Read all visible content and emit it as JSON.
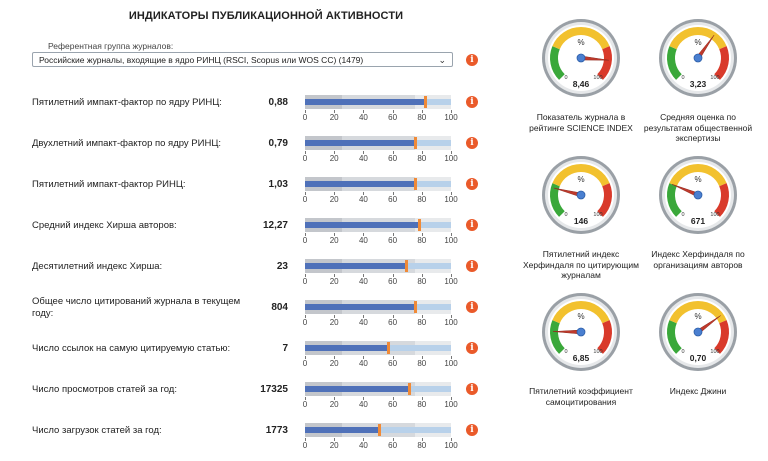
{
  "title": "ИНДИКАТОРЫ ПУБЛИКАЦИОННОЙ АКТИВНОСТИ",
  "reference": {
    "label": "Референтная группа журналов:",
    "selected": "Российские журналы, входящие в ядро РИНЦ (RSCI, Scopus или WOS CC) (1479)"
  },
  "axis_ticks": [
    "0",
    "20",
    "40",
    "60",
    "80",
    "100"
  ],
  "rows": [
    {
      "label": "Пятилетний импакт-фактор по ядру РИНЦ:",
      "value": "0,88",
      "fill": 0.82,
      "marker": 0.82
    },
    {
      "label": "Двухлетний импакт-фактор по ядру РИНЦ:",
      "value": "0,79",
      "fill": 0.75,
      "marker": 0.75
    },
    {
      "label": "Пятилетний импакт-фактор РИНЦ:",
      "value": "1,03",
      "fill": 0.75,
      "marker": 0.75
    },
    {
      "label": "Средний индекс Хирша авторов:",
      "value": "12,27",
      "fill": 0.78,
      "marker": 0.78
    },
    {
      "label": "Десятилетний индекс Хирша:",
      "value": "23",
      "fill": 0.69,
      "marker": 0.69
    },
    {
      "label": "Общее число цитирований журнала в текущем году:",
      "value": "804",
      "fill": 0.75,
      "marker": 0.75
    },
    {
      "label": "Число ссылок на самую цитируемую статью:",
      "value": "7",
      "fill": 0.57,
      "marker": 0.57
    },
    {
      "label": "Число просмотров статей за год:",
      "value": "17325",
      "fill": 0.71,
      "marker": 0.71
    },
    {
      "label": "Число загрузок статей за год:",
      "value": "1773",
      "fill": 0.51,
      "marker": 0.51
    }
  ],
  "gauges": [
    {
      "caption": "Показатель журнала в рейтинге SCIENCE INDEX",
      "value": "8,46",
      "pct_label": "%",
      "min_label": "0",
      "max_label": "100",
      "level": 0.85
    },
    {
      "caption": "Средняя оценка по результатам общественной экспертизы",
      "value": "3,23",
      "pct_label": "%",
      "min_label": "0",
      "max_label": "100",
      "level": 0.63
    },
    {
      "caption": "Пятилетний индекс Херфиндаля по цитирующим журналам",
      "value": "146",
      "pct_label": "%",
      "min_label": "0",
      "max_label": "100",
      "level": 0.22
    },
    {
      "caption": "Индекс Херфиндаля по организациям авторов",
      "value": "671",
      "pct_label": "%",
      "min_label": "0",
      "max_label": "100",
      "level": 0.25
    },
    {
      "caption": "Пятилетний коэффициент самоцитирования",
      "value": "6,85",
      "pct_label": "%",
      "min_label": "0",
      "max_label": "100",
      "level": 0.17
    },
    {
      "caption": "Индекс Джини",
      "value": "0,70",
      "pct_label": "%",
      "min_label": "0",
      "max_label": "100",
      "level": 0.7
    }
  ],
  "colors": {
    "accent_orange": "#f08a37",
    "info_icon": "#ea5a2a",
    "bar_fill": "#4f71b9",
    "gauge_green": "#3aa83a",
    "gauge_yellow": "#f2c12e",
    "gauge_red": "#d93a2b"
  },
  "icons": {
    "info": "info-icon",
    "dropdown": "chevron-down-icon"
  }
}
